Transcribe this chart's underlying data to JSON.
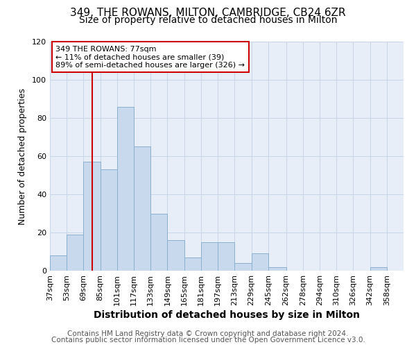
{
  "title": "349, THE ROWANS, MILTON, CAMBRIDGE, CB24 6ZR",
  "subtitle": "Size of property relative to detached houses in Milton",
  "xlabel": "Distribution of detached houses by size in Milton",
  "ylabel": "Number of detached properties",
  "bin_labels": [
    "37sqm",
    "53sqm",
    "69sqm",
    "85sqm",
    "101sqm",
    "117sqm",
    "133sqm",
    "149sqm",
    "165sqm",
    "181sqm",
    "197sqm",
    "213sqm",
    "229sqm",
    "245sqm",
    "262sqm",
    "278sqm",
    "294sqm",
    "310sqm",
    "326sqm",
    "342sqm",
    "358sqm"
  ],
  "bin_edges": [
    37,
    53,
    69,
    85,
    101,
    117,
    133,
    149,
    165,
    181,
    197,
    213,
    229,
    245,
    262,
    278,
    294,
    310,
    326,
    342,
    358,
    374
  ],
  "bar_heights": [
    8,
    19,
    57,
    53,
    86,
    65,
    30,
    16,
    7,
    15,
    15,
    4,
    9,
    2,
    0,
    0,
    0,
    0,
    0,
    2,
    0
  ],
  "bar_color": "#c9d9ed",
  "bar_edge_color": "#8ab0d0",
  "property_line_x": 77,
  "property_line_color": "#cc0000",
  "annotation_text": "349 THE ROWANS: 77sqm\n← 11% of detached houses are smaller (39)\n89% of semi-detached houses are larger (326) →",
  "annotation_box_color": "#ffffff",
  "annotation_box_edge_color": "#cc0000",
  "ylim": [
    0,
    120
  ],
  "yticks": [
    0,
    20,
    40,
    60,
    80,
    100,
    120
  ],
  "background_color": "#ffffff",
  "axes_bg_color": "#e8eef8",
  "grid_color": "#c8d4e8",
  "footer_line1": "Contains HM Land Registry data © Crown copyright and database right 2024.",
  "footer_line2": "Contains public sector information licensed under the Open Government Licence v3.0.",
  "title_fontsize": 11,
  "subtitle_fontsize": 10,
  "xlabel_fontsize": 10,
  "ylabel_fontsize": 9,
  "tick_fontsize": 8,
  "annotation_fontsize": 8,
  "footer_fontsize": 7.5
}
